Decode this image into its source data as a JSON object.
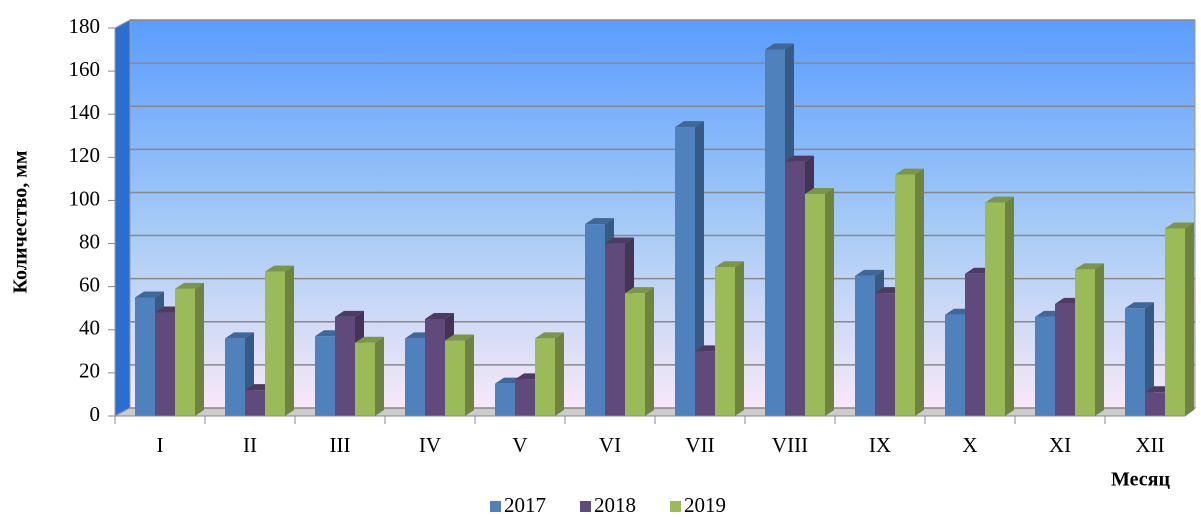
{
  "chart_data": {
    "type": "bar3d",
    "y_label": "Количество, мм",
    "x_label": "Месяц",
    "categories": [
      "I",
      "II",
      "III",
      "IV",
      "V",
      "VI",
      "VII",
      "VIII",
      "IX",
      "X",
      "XI",
      "XII"
    ],
    "series": [
      {
        "name": "2017",
        "color": "#4f81bd",
        "values": [
          55,
          36,
          37,
          36,
          15,
          89,
          134,
          170,
          65,
          47,
          46,
          50
        ]
      },
      {
        "name": "2018",
        "color": "#604a7b",
        "values": [
          48,
          12,
          46,
          45,
          17,
          80,
          30,
          118,
          57,
          66,
          52,
          11
        ]
      },
      {
        "name": "2019",
        "color": "#9bbb59",
        "values": [
          59,
          67,
          34,
          35,
          36,
          57,
          69,
          103,
          112,
          99,
          68,
          87
        ]
      }
    ],
    "ylim": [
      0,
      180
    ],
    "yticks": [
      0,
      20,
      40,
      60,
      80,
      100,
      120,
      140,
      160,
      180
    ],
    "grid": true,
    "legend": "bottom"
  }
}
